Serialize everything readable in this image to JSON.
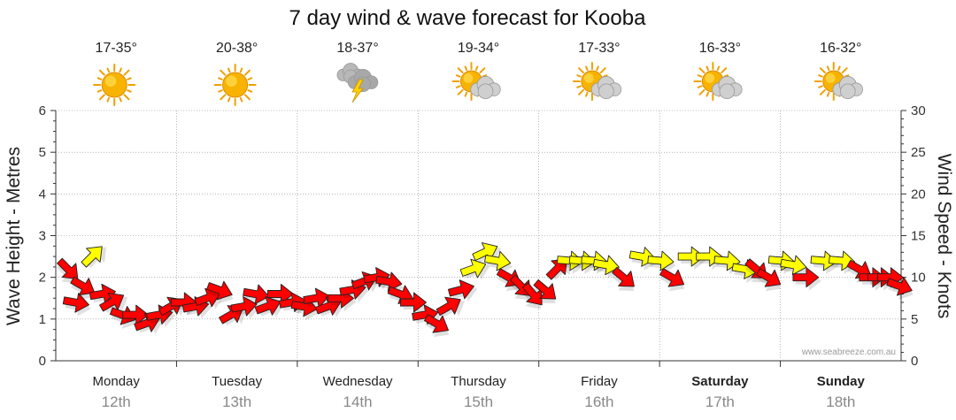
{
  "chart_data": {
    "type": "line",
    "title": "7 day wind & wave forecast for Kooba",
    "ylabel_left": "Wave Height - Metres",
    "ylabel_right": "Wind Speed - Knots",
    "ylim_left": [
      0,
      6
    ],
    "ylim_right": [
      0,
      30
    ],
    "yticks_left": [
      "0",
      "1",
      "2",
      "3",
      "4",
      "5",
      "6"
    ],
    "yticks_right": [
      "0",
      "5",
      "10",
      "15",
      "20",
      "25",
      "30"
    ],
    "credit": "www.seabreeze.com.au",
    "days": [
      {
        "name": "Monday",
        "date": "12th",
        "temp": "17-35°",
        "icon": "sunny-icon",
        "bold": false
      },
      {
        "name": "Tuesday",
        "date": "13th",
        "temp": "20-38°",
        "icon": "sunny-icon",
        "bold": false
      },
      {
        "name": "Wednesday",
        "date": "14th",
        "temp": "18-37°",
        "icon": "storm-icon",
        "bold": false
      },
      {
        "name": "Thursday",
        "date": "15th",
        "temp": "19-34°",
        "icon": "partly-cloudy-icon",
        "bold": false
      },
      {
        "name": "Friday",
        "date": "16th",
        "temp": "17-33°",
        "icon": "partly-cloudy-icon",
        "bold": false
      },
      {
        "name": "Saturday",
        "date": "17th",
        "temp": "16-33°",
        "icon": "partly-cloudy-icon",
        "bold": true
      },
      {
        "name": "Sunday",
        "date": "18th",
        "temp": "16-32°",
        "icon": "partly-cloudy-icon",
        "bold": true
      }
    ],
    "wind_series": {
      "name": "Wind",
      "unit": "knots",
      "points": [
        {
          "day": 0.0,
          "speed": 11,
          "dir": 135,
          "color": "red"
        },
        {
          "day": 0.06,
          "speed": 7,
          "dir": 100,
          "color": "red"
        },
        {
          "day": 0.12,
          "speed": 9,
          "dir": 120,
          "color": "red"
        },
        {
          "day": 0.2,
          "speed": 12.5,
          "dir": 45,
          "color": "yellow"
        },
        {
          "day": 0.28,
          "speed": 8,
          "dir": 80,
          "color": "red"
        },
        {
          "day": 0.36,
          "speed": 7,
          "dir": 60,
          "color": "red"
        },
        {
          "day": 0.45,
          "speed": 5.5,
          "dir": 110,
          "color": "red"
        },
        {
          "day": 0.55,
          "speed": 5.5,
          "dir": 90,
          "color": "red"
        },
        {
          "day": 0.65,
          "speed": 4.5,
          "dir": 70,
          "color": "red"
        },
        {
          "day": 0.75,
          "speed": 5.5,
          "dir": 80,
          "color": "red"
        },
        {
          "day": 0.85,
          "speed": 6.5,
          "dir": 60,
          "color": "red"
        },
        {
          "day": 0.95,
          "speed": 7,
          "dir": 90,
          "color": "red"
        },
        {
          "day": 1.05,
          "speed": 6.5,
          "dir": 80,
          "color": "red"
        },
        {
          "day": 1.15,
          "speed": 7.5,
          "dir": 70,
          "color": "red"
        },
        {
          "day": 1.25,
          "speed": 8.5,
          "dir": 110,
          "color": "red"
        },
        {
          "day": 1.35,
          "speed": 5.5,
          "dir": 60,
          "color": "red"
        },
        {
          "day": 1.45,
          "speed": 6.5,
          "dir": 80,
          "color": "red"
        },
        {
          "day": 1.55,
          "speed": 8,
          "dir": 100,
          "color": "red"
        },
        {
          "day": 1.65,
          "speed": 6.5,
          "dir": 70,
          "color": "red"
        },
        {
          "day": 1.75,
          "speed": 8,
          "dir": 90,
          "color": "red"
        },
        {
          "day": 1.85,
          "speed": 7,
          "dir": 80,
          "color": "red"
        },
        {
          "day": 1.95,
          "speed": 6.5,
          "dir": 100,
          "color": "red"
        },
        {
          "day": 2.05,
          "speed": 7.5,
          "dir": 80,
          "color": "red"
        },
        {
          "day": 2.15,
          "speed": 6.5,
          "dir": 70,
          "color": "red"
        },
        {
          "day": 2.25,
          "speed": 7.5,
          "dir": 90,
          "color": "red"
        },
        {
          "day": 2.35,
          "speed": 8.5,
          "dir": 80,
          "color": "red"
        },
        {
          "day": 2.45,
          "speed": 9.5,
          "dir": 70,
          "color": "red"
        },
        {
          "day": 2.55,
          "speed": 10,
          "dir": 80,
          "color": "red"
        },
        {
          "day": 2.65,
          "speed": 9.5,
          "dir": 100,
          "color": "red"
        },
        {
          "day": 2.75,
          "speed": 8,
          "dir": 110,
          "color": "red"
        },
        {
          "day": 2.85,
          "speed": 7,
          "dir": 90,
          "color": "red"
        },
        {
          "day": 2.95,
          "speed": 5.5,
          "dir": 80,
          "color": "red"
        },
        {
          "day": 3.05,
          "speed": 4.5,
          "dir": 120,
          "color": "red"
        },
        {
          "day": 3.15,
          "speed": 6.5,
          "dir": 60,
          "color": "red"
        },
        {
          "day": 3.25,
          "speed": 8.5,
          "dir": 75,
          "color": "red"
        },
        {
          "day": 3.35,
          "speed": 11,
          "dir": 70,
          "color": "yellow"
        },
        {
          "day": 3.45,
          "speed": 13,
          "dir": 65,
          "color": "yellow"
        },
        {
          "day": 3.55,
          "speed": 12,
          "dir": 100,
          "color": "yellow"
        },
        {
          "day": 3.65,
          "speed": 10,
          "dir": 120,
          "color": "red"
        },
        {
          "day": 3.75,
          "speed": 9,
          "dir": 135,
          "color": "red"
        },
        {
          "day": 3.85,
          "speed": 8,
          "dir": 140,
          "color": "red"
        },
        {
          "day": 3.95,
          "speed": 8.5,
          "dir": 130,
          "color": "red"
        },
        {
          "day": 4.05,
          "speed": 11,
          "dir": 45,
          "color": "red"
        },
        {
          "day": 4.15,
          "speed": 12,
          "dir": 95,
          "color": "yellow"
        },
        {
          "day": 4.25,
          "speed": 12,
          "dir": 95,
          "color": "yellow"
        },
        {
          "day": 4.35,
          "speed": 12,
          "dir": 95,
          "color": "yellow"
        },
        {
          "day": 4.45,
          "speed": 11.5,
          "dir": 100,
          "color": "yellow"
        },
        {
          "day": 4.6,
          "speed": 10,
          "dir": 130,
          "color": "red"
        },
        {
          "day": 4.75,
          "speed": 12.5,
          "dir": 100,
          "color": "yellow"
        },
        {
          "day": 4.9,
          "speed": 12,
          "dir": 95,
          "color": "yellow"
        },
        {
          "day": 5.0,
          "speed": 10,
          "dir": 120,
          "color": "red"
        },
        {
          "day": 5.15,
          "speed": 12.5,
          "dir": 90,
          "color": "yellow"
        },
        {
          "day": 5.3,
          "speed": 12.5,
          "dir": 90,
          "color": "yellow"
        },
        {
          "day": 5.45,
          "speed": 12,
          "dir": 95,
          "color": "yellow"
        },
        {
          "day": 5.6,
          "speed": 11,
          "dir": 100,
          "color": "yellow"
        },
        {
          "day": 5.7,
          "speed": 11,
          "dir": 130,
          "color": "red"
        },
        {
          "day": 5.8,
          "speed": 10,
          "dir": 120,
          "color": "red"
        },
        {
          "day": 5.9,
          "speed": 12,
          "dir": 95,
          "color": "yellow"
        },
        {
          "day": 6.0,
          "speed": 11.5,
          "dir": 100,
          "color": "yellow"
        },
        {
          "day": 6.1,
          "speed": 10,
          "dir": 90,
          "color": "red"
        },
        {
          "day": 6.25,
          "speed": 12,
          "dir": 95,
          "color": "yellow"
        },
        {
          "day": 6.4,
          "speed": 12,
          "dir": 95,
          "color": "yellow"
        },
        {
          "day": 6.55,
          "speed": 11,
          "dir": 120,
          "color": "red"
        },
        {
          "day": 6.65,
          "speed": 10,
          "dir": 90,
          "color": "red"
        },
        {
          "day": 6.72,
          "speed": 10,
          "dir": 90,
          "color": "red"
        },
        {
          "day": 6.8,
          "speed": 10,
          "dir": 90,
          "color": "red"
        },
        {
          "day": 6.88,
          "speed": 9,
          "dir": 110,
          "color": "red"
        }
      ]
    },
    "colors": {
      "strong_wind": "#ff0000",
      "moderate_wind": "#ffff00",
      "arrow_outline": "#222222",
      "grid": "#888888",
      "axis": "#333333"
    }
  }
}
